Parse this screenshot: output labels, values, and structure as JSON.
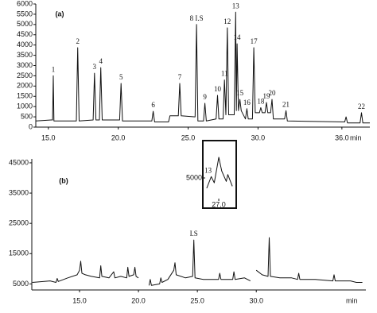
{
  "chart_data": [
    {
      "type": "line",
      "label": "(a)",
      "xlabel": "min",
      "xlim": [
        14.1,
        38.0
      ],
      "ylim": [
        0,
        6000
      ],
      "xticks": [
        {
          "value": 15,
          "label": "15.0"
        },
        {
          "value": 20,
          "label": "20.0"
        },
        {
          "value": 25,
          "label": "25.0"
        },
        {
          "value": 30,
          "label": "30.0"
        },
        {
          "value": 36,
          "label": "36.0"
        }
      ],
      "yticks": [
        0,
        500,
        1000,
        1500,
        2000,
        2500,
        3000,
        3500,
        4000,
        4500,
        5000,
        5500,
        6000
      ],
      "series": [
        {
          "color": "#111111",
          "x": [
            14.1,
            15.2,
            15.3,
            15.35,
            15.4,
            17.0,
            17.1,
            17.2,
            18.2,
            18.3,
            18.4,
            18.65,
            18.75,
            18.85,
            20.1,
            20.2,
            20.3,
            22.4,
            22.5,
            22.6,
            23.6,
            23.7,
            24.3,
            24.4,
            24.5,
            25.5,
            25.6,
            25.7,
            26.1,
            26.2,
            26.3,
            27.0,
            27.1,
            27.2,
            27.5,
            27.6,
            27.7,
            27.8,
            27.9,
            28.3,
            28.4,
            28.45,
            28.5,
            28.6,
            28.7,
            28.8,
            29.1,
            29.2,
            29.3,
            29.6,
            29.7,
            29.8,
            30.1,
            30.2,
            30.3,
            30.5,
            30.6,
            30.7,
            30.9,
            31.0,
            31.1,
            31.9,
            32.0,
            32.1,
            36.2,
            36.3,
            36.4,
            37.3,
            37.4,
            37.5,
            38.0
          ],
          "values": [
            300,
            350,
            350,
            2500,
            300,
            300,
            3870,
            300,
            350,
            2630,
            350,
            350,
            2900,
            350,
            350,
            2130,
            300,
            300,
            770,
            250,
            250,
            550,
            550,
            2130,
            550,
            500,
            5000,
            300,
            300,
            1160,
            300,
            400,
            1550,
            400,
            400,
            2300,
            600,
            4840,
            600,
            600,
            5600,
            800,
            4060,
            800,
            1350,
            800,
            400,
            900,
            400,
            400,
            3870,
            700,
            700,
            950,
            700,
            700,
            1200,
            700,
            700,
            1350,
            400,
            400,
            800,
            300,
            250,
            500,
            200,
            200,
            700,
            200,
            200
          ]
        }
      ],
      "peak_labels": [
        {
          "label": "1",
          "x": 15.35
        },
        {
          "label": "2",
          "x": 17.1
        },
        {
          "label": "3",
          "x": 18.3
        },
        {
          "label": "4",
          "x": 18.75
        },
        {
          "label": "5",
          "x": 20.2
        },
        {
          "label": "6",
          "x": 22.5
        },
        {
          "label": "7",
          "x": 24.4
        },
        {
          "label": "8 I.S",
          "x": 25.6
        },
        {
          "label": "9",
          "x": 26.2
        },
        {
          "label": "10",
          "x": 27.1
        },
        {
          "label": "11",
          "x": 27.6
        },
        {
          "label": "12",
          "x": 27.8
        },
        {
          "label": "13",
          "x": 28.4
        },
        {
          "label": "14",
          "x": 28.5
        },
        {
          "label": "15",
          "x": 28.7
        },
        {
          "label": "16",
          "x": 29.2
        },
        {
          "label": "17",
          "x": 29.7
        },
        {
          "label": "18",
          "x": 30.2
        },
        {
          "label": "19",
          "x": 30.6
        },
        {
          "label": "20",
          "x": 31.0
        },
        {
          "label": "21",
          "x": 32.0
        },
        {
          "label": "22",
          "x": 37.4
        }
      ]
    },
    {
      "type": "line",
      "label": "(b)",
      "xlabel": "min",
      "xlim": [
        10.95,
        39.3
      ],
      "ylim": [
        3000,
        46300
      ],
      "xticks": [
        {
          "value": 15,
          "label": "15.0"
        },
        {
          "value": 20,
          "label": "20.0"
        },
        {
          "value": 25,
          "label": "25.0"
        },
        {
          "value": 30,
          "label": "30.0"
        }
      ],
      "yticks": [
        5000,
        15000,
        25000,
        35000,
        45000
      ],
      "series": [
        {
          "color": "#111111",
          "x": [
            11.0,
            12.5,
            13.0,
            13.1,
            13.2,
            14.0,
            14.8,
            15.0,
            15.1,
            15.2,
            15.5,
            16.0,
            16.7,
            16.8,
            16.9,
            17.5,
            17.9,
            18.0,
            18.5,
            19.0,
            19.1,
            19.2,
            19.6,
            19.7,
            19.8,
            20.0,
            20.1,
            20.9,
            21.0,
            21.1,
            21.8,
            21.9,
            22.0,
            22.5,
            23.0,
            23.1,
            23.2,
            24.0,
            24.6,
            24.7,
            24.8,
            25.5,
            26.8,
            26.9,
            27.0,
            28.0,
            28.1,
            28.2,
            29.0,
            29.5,
            29.6,
            30.0,
            30.5,
            31.0,
            31.1,
            31.2,
            32.0,
            33.0,
            33.5,
            33.6,
            33.7,
            35.0,
            36.5,
            36.6,
            36.7,
            38.0,
            38.5,
            39.0
          ],
          "values": [
            5500,
            6000,
            5500,
            6800,
            5800,
            7000,
            8000,
            9500,
            12500,
            8500,
            8000,
            7500,
            7000,
            11000,
            7500,
            7000,
            9000,
            7000,
            7500,
            7000,
            10500,
            7500,
            8000,
            10500,
            7500,
            7000,
            null,
            4500,
            6500,
            4500,
            5000,
            7000,
            5500,
            6500,
            9500,
            12000,
            8000,
            7000,
            7500,
            19500,
            7000,
            6500,
            6500,
            8500,
            6500,
            6500,
            9000,
            6500,
            7000,
            6000,
            null,
            9500,
            8000,
            7500,
            20300,
            7500,
            7000,
            7000,
            6500,
            8500,
            6500,
            6500,
            6000,
            8000,
            6000,
            6000,
            5500,
            5500
          ]
        }
      ],
      "peak_labels": [
        {
          "label": "I.S",
          "x": 24.7
        }
      ]
    },
    {
      "type": "line",
      "xlim": [
        26.55,
        27.5
      ],
      "ylim": [
        2000,
        9500
      ],
      "xticks": [
        {
          "value": 27,
          "label": "27.0"
        }
      ],
      "yticks": [
        5000
      ],
      "series": [
        {
          "color": "#111111",
          "x": [
            26.6,
            26.75,
            26.85,
            27.0,
            27.1,
            27.25,
            27.3,
            27.45
          ],
          "values": [
            3500,
            5200,
            4300,
            8000,
            6000,
            4500,
            5500,
            3800
          ]
        }
      ],
      "peak_labels": [
        {
          "label": "13",
          "x": 26.75
        }
      ]
    }
  ]
}
